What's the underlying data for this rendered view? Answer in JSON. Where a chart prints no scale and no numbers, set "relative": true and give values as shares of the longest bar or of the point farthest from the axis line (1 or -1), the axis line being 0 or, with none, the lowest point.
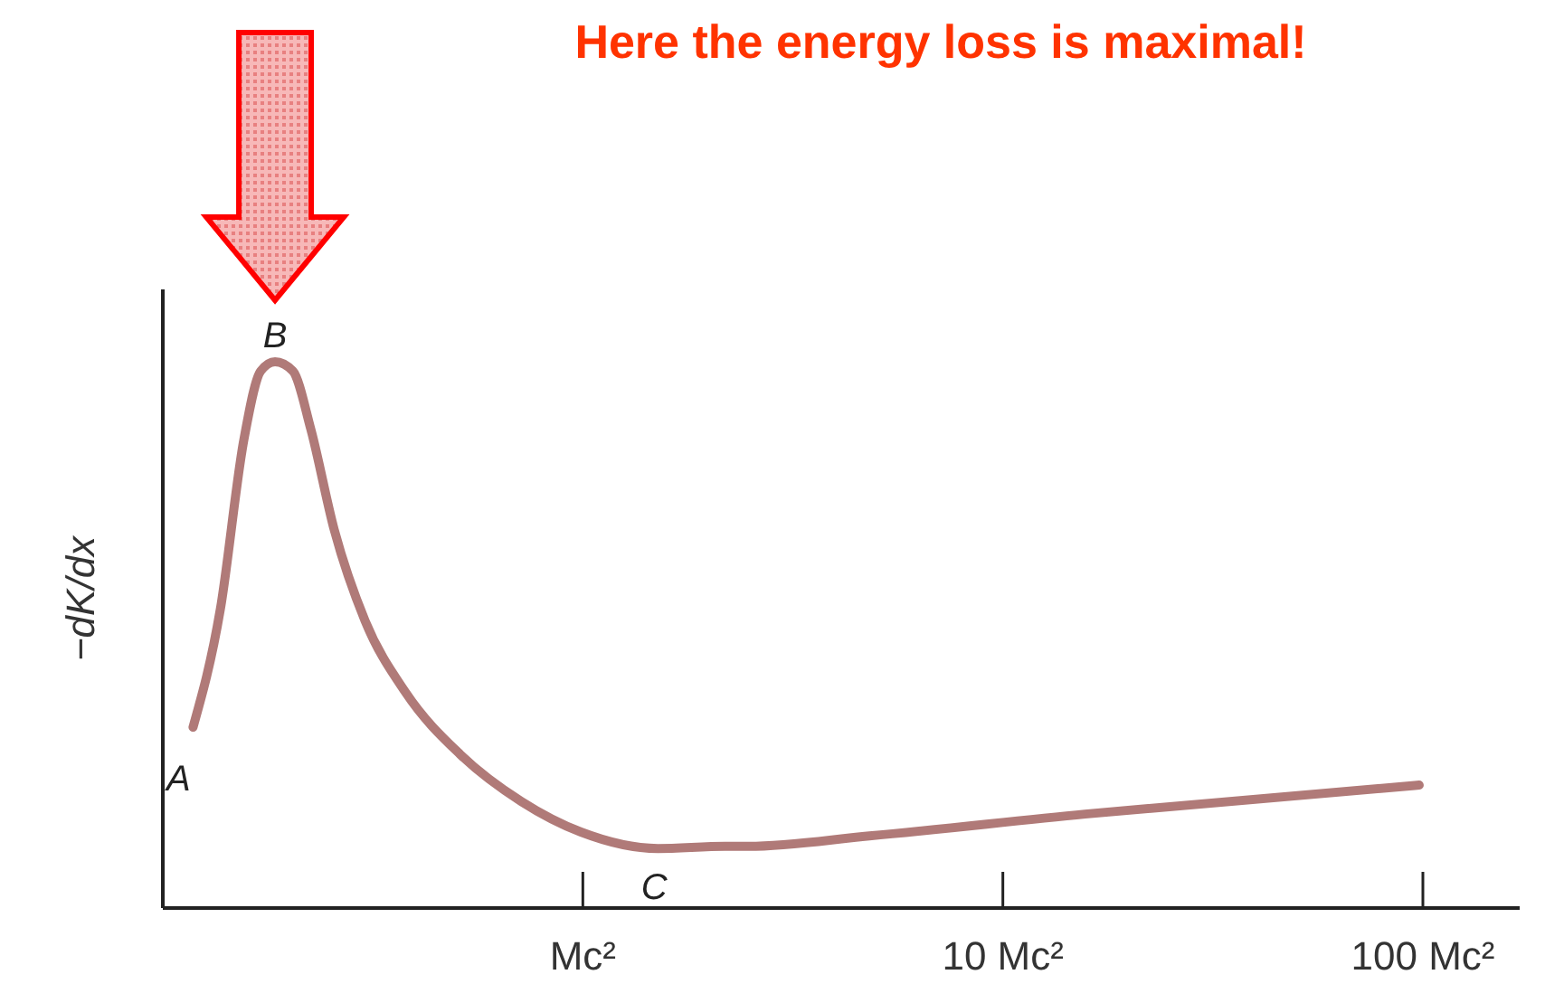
{
  "chart_data": {
    "type": "line",
    "title": "Here the energy loss is maximal!",
    "ylabel": "−dK/dx",
    "relative": true,
    "log": "x",
    "xlim": [
      0.1,
      170
    ],
    "xticks": [
      {
        "value": 1,
        "label": "Mc²"
      },
      {
        "value": 10,
        "label": "10 Mc²"
      },
      {
        "value": 100,
        "label": "100 Mc²"
      }
    ],
    "series": [
      {
        "color": "#b07a78",
        "x": [
          0.118,
          0.137,
          0.156,
          0.171,
          0.185,
          0.204,
          0.225,
          0.256,
          0.303,
          0.379,
          0.511,
          0.714,
          0.99,
          1.51,
          2.18,
          2.48,
          4.81,
          15.7,
          98
        ],
        "values": [
          0.331,
          0.546,
          0.858,
          0.983,
          1.0,
          0.983,
          0.877,
          0.692,
          0.526,
          0.394,
          0.281,
          0.195,
          0.139,
          0.109,
          0.113,
          0.113,
          0.132,
          0.172,
          0.225
        ]
      }
    ],
    "annotations": [
      {
        "text": "A",
        "x": 0.118,
        "y": 0.331
      },
      {
        "text": "B",
        "x": 0.185,
        "y": 1.0
      },
      {
        "text": "C",
        "x": 1.6,
        "y": 0.109
      }
    ]
  }
}
